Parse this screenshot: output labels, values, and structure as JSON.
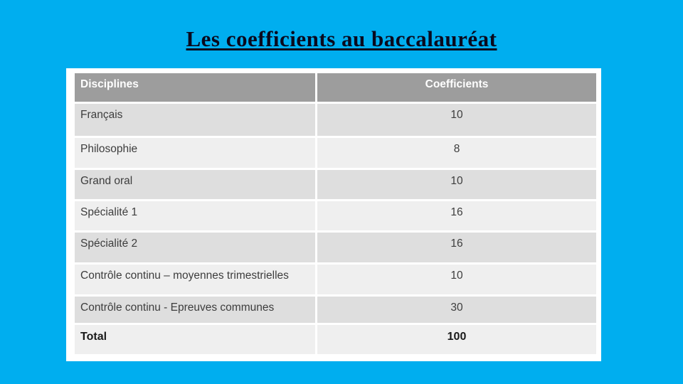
{
  "theme": {
    "background_color": "#00AEEF",
    "panel_bg": "#FFFFFF",
    "title_color": "#0A0A1E",
    "header_bg": "#9D9D9D",
    "header_text": "#FFFFFF",
    "row_dark": "#DEDEDE",
    "row_light": "#EFEFEF",
    "body_text": "#3D3D3D"
  },
  "slide": {
    "title": "Les coefficients au baccalauréat"
  },
  "table": {
    "headers": {
      "discipline": "Disciplines",
      "coefficient": "Coefficients"
    },
    "rows": [
      {
        "discipline": "Français",
        "coefficient": "10"
      },
      {
        "discipline": "Philosophie",
        "coefficient": "8"
      },
      {
        "discipline": "Grand oral",
        "coefficient": "10"
      },
      {
        "discipline": "Spécialité 1",
        "coefficient": "16"
      },
      {
        "discipline": "Spécialité 2",
        "coefficient": "16"
      },
      {
        "discipline": "Contrôle continu – moyennes trimestrielles",
        "coefficient": "10"
      },
      {
        "discipline": "Contrôle continu - Epreuves communes",
        "coefficient": "30"
      },
      {
        "discipline": "Total",
        "coefficient": "100"
      }
    ]
  }
}
